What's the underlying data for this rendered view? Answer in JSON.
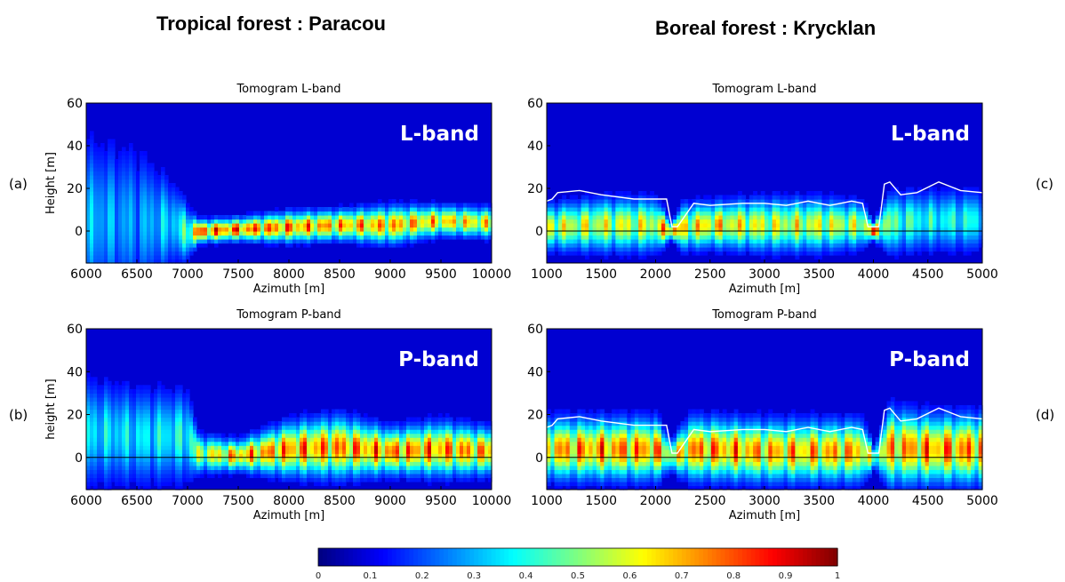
{
  "figure": {
    "left_title": "Tropical forest : Paracou",
    "right_title": "Boreal forest : Krycklan"
  },
  "colorbar": {
    "colormap": "jet",
    "ticks": [
      "0",
      "0.1",
      "0.2",
      "0.3",
      "0.4",
      "0.5",
      "0.6",
      "0.7",
      "0.8",
      "0.9",
      "1"
    ],
    "range": [
      0,
      1
    ]
  },
  "chart_data": [
    {
      "type": "heatmap",
      "panel_letter": "(a)",
      "title": "Tomogram L-band",
      "band_label": "L-band",
      "xlabel": "Azimuth  [m]",
      "ylabel": "Height [m]",
      "xlim": [
        6000,
        10000
      ],
      "ylim": [
        -15,
        60
      ],
      "xticks": [
        "6000",
        "6500",
        "7000",
        "7500",
        "8000",
        "8500",
        "9000",
        "9500",
        "10000"
      ],
      "yticks": [
        "0",
        "20",
        "40",
        "60"
      ],
      "ground_line": false,
      "canopy_line": null,
      "scattering_profile": {
        "x": [
          6000,
          6500,
          6900,
          7000,
          7100,
          7500,
          8000,
          8500,
          9000,
          9500,
          10000
        ],
        "peak_height": [
          5,
          5,
          3,
          -1,
          0,
          1,
          2,
          3,
          3,
          5,
          4
        ],
        "spread": [
          22,
          20,
          10,
          7,
          3,
          3,
          4,
          4,
          5,
          4,
          4
        ],
        "max_intensity": [
          0.4,
          0.35,
          0.45,
          0.6,
          1.0,
          1.0,
          0.95,
          0.9,
          0.9,
          0.85,
          0.8
        ]
      }
    },
    {
      "type": "heatmap",
      "panel_letter": "(b)",
      "title": "Tomogram P-band",
      "band_label": "P-band",
      "xlabel": "Azimuth  [m]",
      "ylabel": "height [m]",
      "xlim": [
        6000,
        10000
      ],
      "ylim": [
        -15,
        60
      ],
      "xticks": [
        "6000",
        "6500",
        "7000",
        "7500",
        "8000",
        "8500",
        "9000",
        "9500",
        "10000"
      ],
      "yticks": [
        "0",
        "20",
        "40",
        "60"
      ],
      "ground_line": true,
      "canopy_line": null,
      "scattering_profile": {
        "x": [
          6000,
          6500,
          7000,
          7100,
          7500,
          8000,
          8500,
          9000,
          9500,
          10000
        ],
        "peak_height": [
          12,
          10,
          10,
          2,
          1,
          4,
          5,
          3,
          4,
          3
        ],
        "spread": [
          14,
          13,
          12,
          5,
          4,
          7,
          8,
          6,
          7,
          6
        ],
        "max_intensity": [
          0.45,
          0.45,
          0.5,
          0.7,
          0.9,
          0.95,
          0.95,
          0.95,
          0.95,
          0.9
        ]
      }
    },
    {
      "type": "heatmap",
      "panel_letter": "(c)",
      "title": "Tomogram L-band",
      "band_label": "L-band",
      "xlabel": "Azimuth  [m]",
      "ylabel": "",
      "xlim": [
        1000,
        5000
      ],
      "ylim": [
        -15,
        60
      ],
      "xticks": [
        "1000",
        "1500",
        "2000",
        "2500",
        "3000",
        "3500",
        "4000",
        "4500",
        "5000"
      ],
      "yticks": [
        "0",
        "20",
        "40",
        "60"
      ],
      "ground_line": true,
      "canopy_line": {
        "x": [
          1000,
          1050,
          1100,
          1300,
          1500,
          1800,
          2100,
          2150,
          2200,
          2350,
          2500,
          2800,
          3000,
          3200,
          3400,
          3600,
          3800,
          3900,
          3950,
          4050,
          4100,
          4150,
          4250,
          4400,
          4600,
          4700,
          4800,
          5000
        ],
        "y": [
          14,
          15,
          18,
          19,
          17,
          15,
          15,
          2,
          2,
          13,
          12,
          13,
          13,
          12,
          14,
          12,
          14,
          13,
          2,
          2,
          22,
          23,
          17,
          18,
          23,
          21,
          19,
          18
        ]
      },
      "scattering_profile": {
        "x": [
          1000,
          1500,
          2000,
          2150,
          2250,
          2500,
          3000,
          3500,
          3900,
          4000,
          4150,
          4500,
          5000
        ],
        "peak_height": [
          2,
          3,
          3,
          0,
          2,
          3,
          3,
          3,
          3,
          0,
          4,
          5,
          5
        ],
        "spread": [
          6,
          7,
          7,
          2,
          6,
          6,
          7,
          7,
          6,
          2,
          8,
          8,
          8
        ],
        "max_intensity": [
          0.75,
          0.75,
          0.75,
          1.0,
          0.8,
          0.85,
          0.75,
          0.75,
          0.7,
          1.0,
          0.6,
          0.5,
          0.5
        ]
      }
    },
    {
      "type": "heatmap",
      "panel_letter": "(d)",
      "title": "Tomogram P-band",
      "band_label": "P-band",
      "xlabel": "Azimuth  [m]",
      "ylabel": "",
      "xlim": [
        1000,
        5000
      ],
      "ylim": [
        -15,
        60
      ],
      "xticks": [
        "1000",
        "1500",
        "2000",
        "2500",
        "3000",
        "3500",
        "4000",
        "4500",
        "5000"
      ],
      "yticks": [
        "0",
        "20",
        "40",
        "60"
      ],
      "ground_line": true,
      "canopy_line": {
        "x": [
          1000,
          1050,
          1100,
          1300,
          1500,
          1800,
          2100,
          2150,
          2200,
          2350,
          2500,
          2800,
          3000,
          3200,
          3400,
          3600,
          3800,
          3900,
          3950,
          4050,
          4100,
          4150,
          4250,
          4400,
          4600,
          4700,
          4800,
          5000
        ],
        "y": [
          14,
          15,
          18,
          19,
          17,
          15,
          15,
          2,
          2,
          13,
          12,
          13,
          13,
          12,
          14,
          12,
          14,
          13,
          2,
          2,
          22,
          23,
          17,
          18,
          23,
          21,
          19,
          18
        ]
      },
      "scattering_profile": {
        "x": [
          1000,
          1500,
          2000,
          2150,
          2300,
          2500,
          3000,
          3500,
          3900,
          4000,
          4150,
          4500,
          5000
        ],
        "peak_height": [
          4,
          4,
          4,
          1,
          4,
          4,
          3,
          3,
          3,
          0,
          5,
          4,
          4
        ],
        "spread": [
          8,
          8,
          8,
          4,
          8,
          8,
          8,
          8,
          8,
          3,
          10,
          9,
          9
        ],
        "max_intensity": [
          0.9,
          0.95,
          0.95,
          0.7,
          0.95,
          0.95,
          0.9,
          0.9,
          0.9,
          0.6,
          0.9,
          0.95,
          0.95
        ]
      }
    }
  ]
}
